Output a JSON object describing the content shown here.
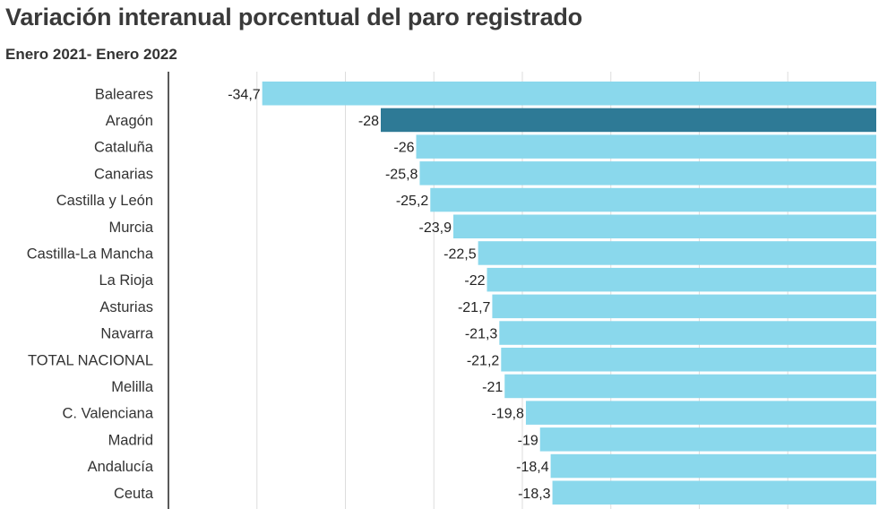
{
  "header": {
    "title": "Variación interanual porcentual del paro registrado",
    "subtitle": "Enero 2021- Enero 2022"
  },
  "chart_data": {
    "type": "bar",
    "orientation": "horizontal",
    "categories": [
      "Baleares",
      "Aragón",
      "Cataluña",
      "Canarias",
      "Castilla y León",
      "Murcia",
      "Castilla-La Mancha",
      "La Rioja",
      "Asturias",
      "Navarra",
      "TOTAL NACIONAL",
      "Melilla",
      "C. Valenciana",
      "Madrid",
      "Andalucía",
      "Ceuta"
    ],
    "values": [
      -34.7,
      -28,
      -26,
      -25.8,
      -25.2,
      -23.9,
      -22.5,
      -22,
      -21.7,
      -21.3,
      -21.2,
      -21,
      -19.8,
      -19,
      -18.4,
      -18.3
    ],
    "value_labels": [
      "-34,7",
      "-28",
      "-26",
      "-25,8",
      "-25,2",
      "-23,9",
      "-22,5",
      "-22",
      "-21,7",
      "-21,3",
      "-21,2",
      "-21",
      "-19,8",
      "-19",
      "-18,4",
      "-18,3"
    ],
    "highlight_index": 1,
    "xlim": [
      -40,
      0
    ],
    "grid": true,
    "colors": {
      "bar": "#8ad8ec",
      "highlight": "#2e7a96",
      "grid": "#dddddd",
      "axis": "#222222"
    }
  }
}
